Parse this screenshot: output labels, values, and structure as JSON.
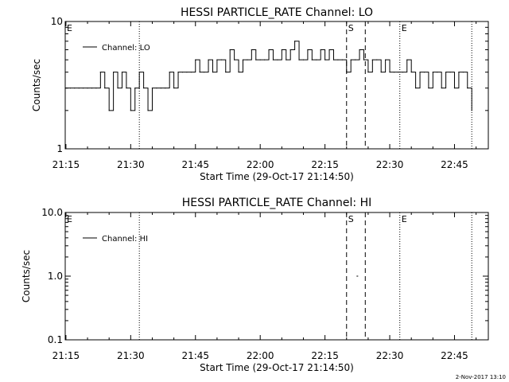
{
  "footer_date": "2-Nov-2017 13:10",
  "chart_data": [
    {
      "type": "line",
      "title": "HESSI PARTICLE_RATE Channel: LO",
      "xlabel": "Start Time (29-Oct-17 21:14:50)",
      "ylabel": "Counts/sec",
      "y_scale": "log",
      "ylim": [
        1,
        10
      ],
      "y_ticks": [
        "1",
        "10"
      ],
      "xlim": [
        "21:14:50",
        "22:52:50"
      ],
      "x_ticks": [
        "21:15",
        "21:30",
        "21:45",
        "22:00",
        "22:15",
        "22:30",
        "22:45"
      ],
      "legend": {
        "position": "top-left",
        "entries": [
          "Channel: LO"
        ]
      },
      "grid": false,
      "markers": [
        {
          "label": "E",
          "time": "21:14:50",
          "style": "dotted"
        },
        {
          "label": "",
          "time": "21:32:00",
          "style": "dotted"
        },
        {
          "label": "S",
          "time": "22:20:00",
          "style": "dashed"
        },
        {
          "label": "",
          "time": "22:24:20",
          "style": "dashed"
        },
        {
          "label": "E",
          "time": "22:32:20",
          "style": "dotted"
        },
        {
          "label": "",
          "time": "22:49:00",
          "style": "dotted"
        }
      ],
      "series": [
        {
          "name": "Channel: LO",
          "x": [
            "21:15",
            "21:16",
            "21:17",
            "21:18",
            "21:19",
            "21:20",
            "21:21",
            "21:22",
            "21:23",
            "21:24",
            "21:25",
            "21:26",
            "21:27",
            "21:28",
            "21:29",
            "21:30",
            "21:31",
            "21:32",
            "21:33",
            "21:34",
            "21:35",
            "21:36",
            "21:37",
            "21:38",
            "21:39",
            "21:40",
            "21:41",
            "21:42",
            "21:43",
            "21:44",
            "21:45",
            "21:46",
            "21:47",
            "21:48",
            "21:49",
            "21:50",
            "21:51",
            "21:52",
            "21:53",
            "21:54",
            "21:55",
            "21:56",
            "21:57",
            "21:58",
            "21:59",
            "22:00",
            "22:01",
            "22:02",
            "22:03",
            "22:04",
            "22:05",
            "22:06",
            "22:07",
            "22:08",
            "22:09",
            "22:10",
            "22:11",
            "22:12",
            "22:13",
            "22:14",
            "22:15",
            "22:16",
            "22:17",
            "22:18",
            "22:19",
            "22:20",
            "22:21",
            "22:22",
            "22:23",
            "22:24",
            "22:25",
            "22:26",
            "22:27",
            "22:28",
            "22:29",
            "22:30",
            "22:31",
            "22:32",
            "22:33",
            "22:34",
            "22:35",
            "22:36",
            "22:37",
            "22:38",
            "22:39",
            "22:40",
            "22:41",
            "22:42",
            "22:43",
            "22:44",
            "22:45",
            "22:46",
            "22:47",
            "22:48",
            "22:49"
          ],
          "values": [
            3,
            3,
            3,
            3,
            3,
            3,
            3,
            3,
            4,
            3,
            2,
            4,
            3,
            4,
            3,
            2,
            3,
            4,
            3,
            2,
            3,
            3,
            3,
            3,
            4,
            3,
            4,
            4,
            4,
            4,
            5,
            4,
            4,
            5,
            4,
            5,
            5,
            4,
            6,
            5,
            4,
            5,
            5,
            6,
            5,
            5,
            5,
            6,
            5,
            5,
            6,
            5,
            6,
            7,
            5,
            5,
            6,
            5,
            5,
            6,
            5,
            6,
            5,
            5,
            5,
            4,
            5,
            5,
            6,
            5,
            4,
            5,
            5,
            4,
            5,
            4,
            4,
            4,
            4,
            5,
            4,
            3,
            4,
            4,
            3,
            4,
            4,
            3,
            4,
            4,
            3,
            4,
            4,
            3,
            2
          ]
        }
      ]
    },
    {
      "type": "line",
      "title": "HESSI PARTICLE_RATE Channel: HI",
      "xlabel": "Start Time (29-Oct-17 21:14:50)",
      "ylabel": "Counts/sec",
      "y_scale": "log",
      "ylim": [
        0.1,
        10
      ],
      "y_ticks": [
        "0.1",
        "1.0",
        "10.0"
      ],
      "xlim": [
        "21:14:50",
        "22:52:50"
      ],
      "x_ticks": [
        "21:15",
        "21:30",
        "21:45",
        "22:00",
        "22:15",
        "22:30",
        "22:45"
      ],
      "legend": {
        "position": "top-left",
        "entries": [
          "Channel: HI"
        ]
      },
      "grid": false,
      "markers": [
        {
          "label": "E",
          "time": "21:14:50",
          "style": "dotted"
        },
        {
          "label": "",
          "time": "21:32:00",
          "style": "dotted"
        },
        {
          "label": "S",
          "time": "22:20:00",
          "style": "dashed"
        },
        {
          "label": "",
          "time": "22:24:20",
          "style": "dashed"
        },
        {
          "label": "E",
          "time": "22:32:20",
          "style": "dotted"
        },
        {
          "label": "",
          "time": "22:49:00",
          "style": "dotted"
        }
      ],
      "series": [
        {
          "name": "Channel: HI",
          "x": [
            "22:22:30"
          ],
          "values": [
            1.0
          ]
        }
      ]
    }
  ]
}
